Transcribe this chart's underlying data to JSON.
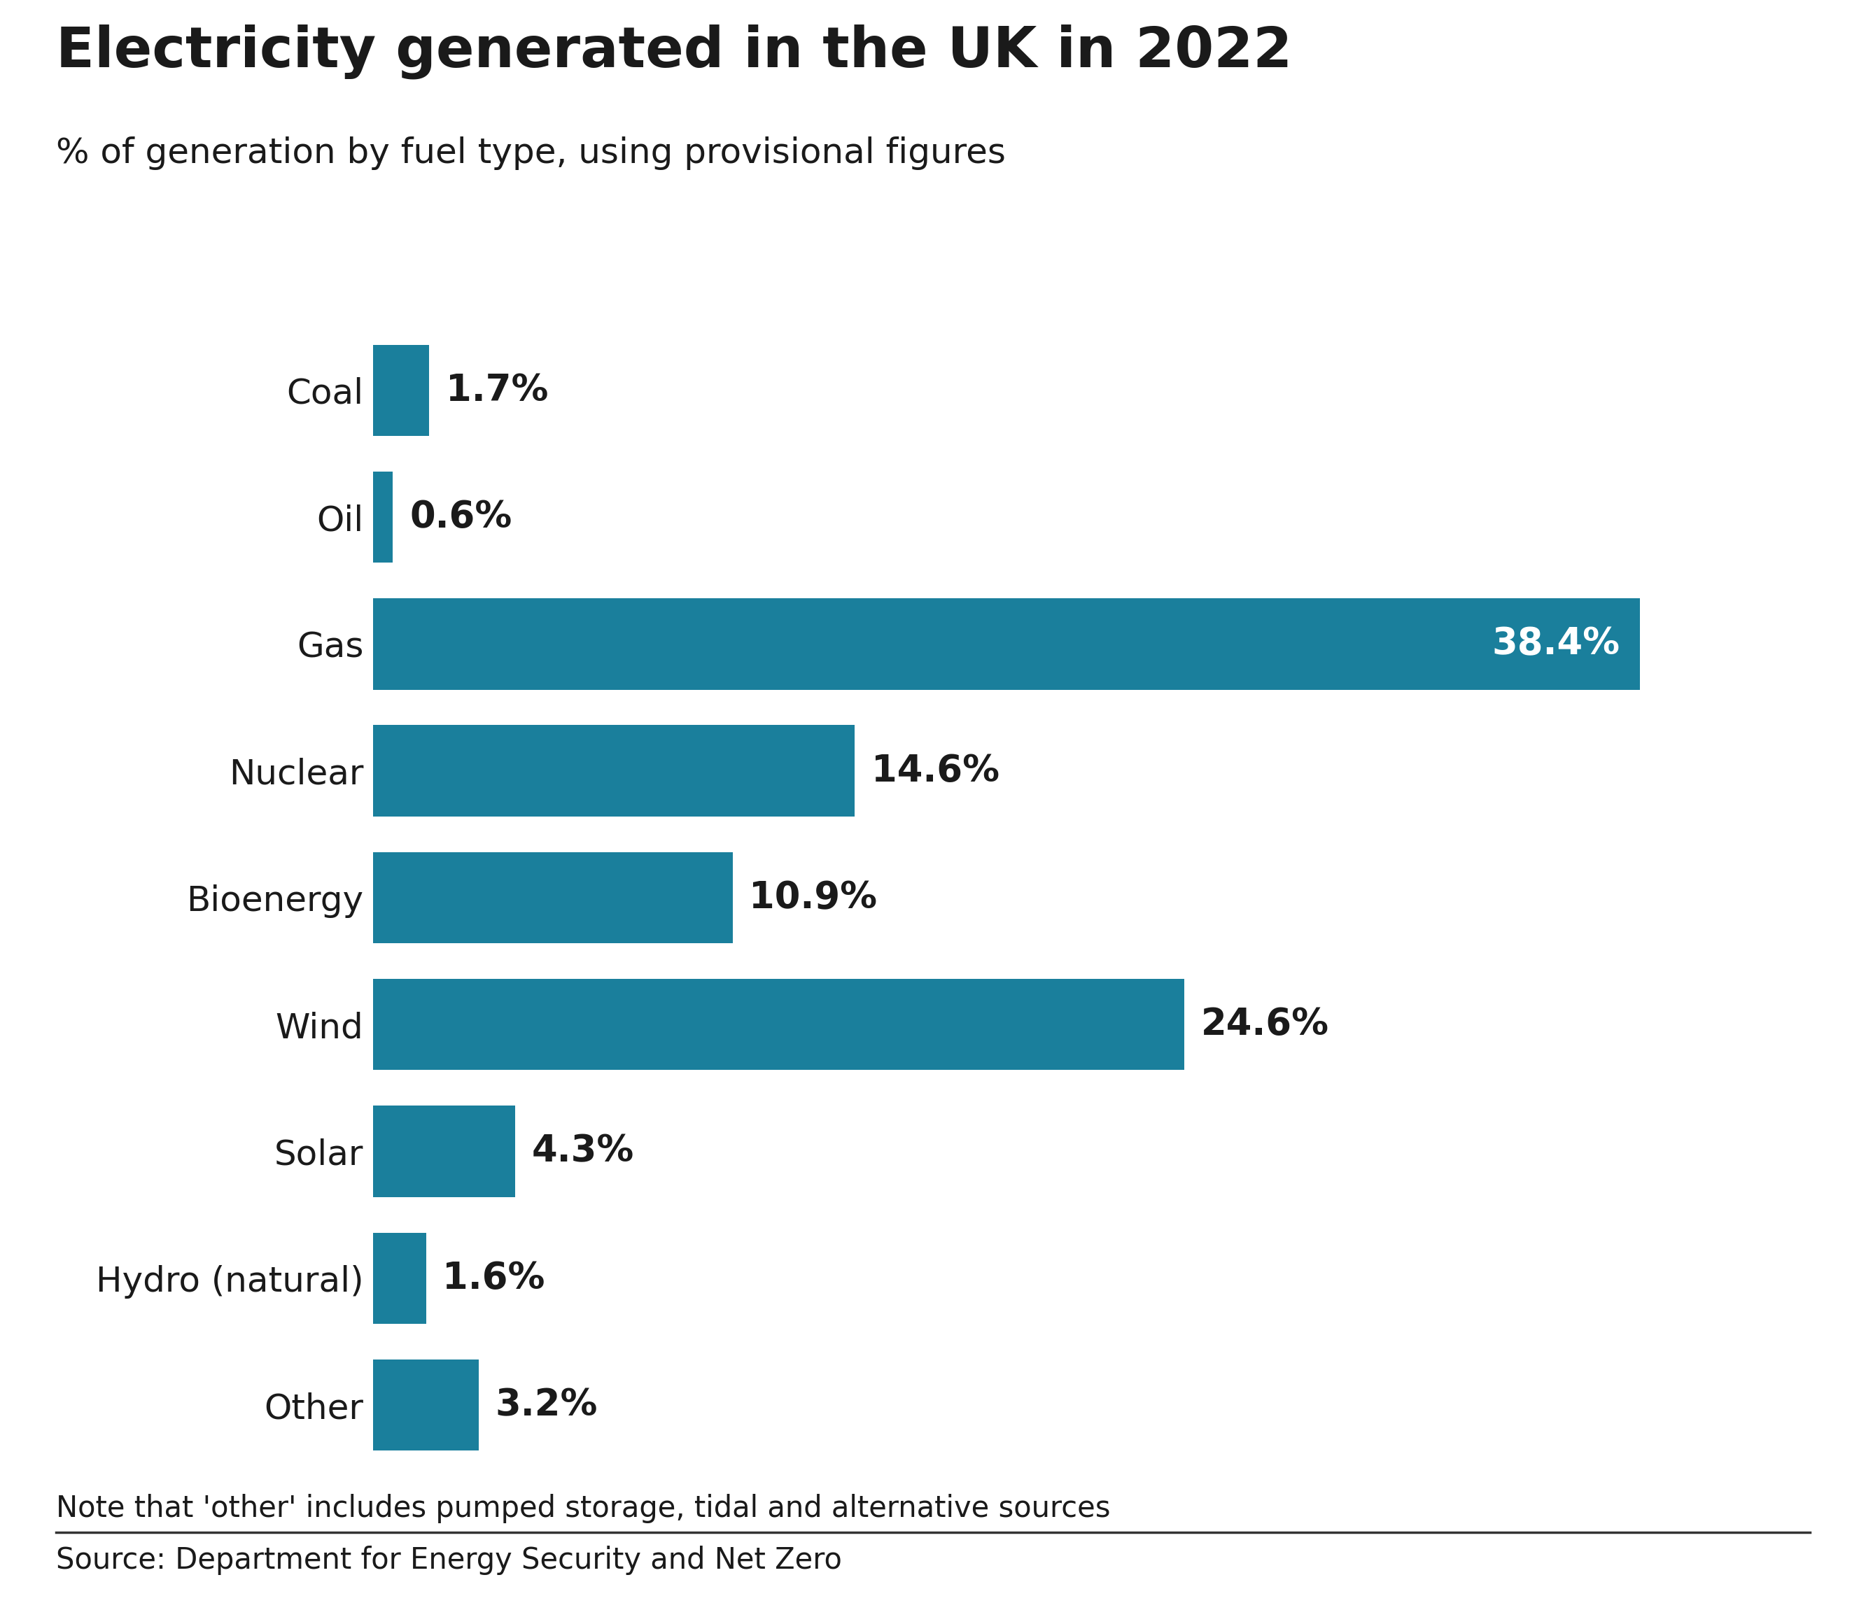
{
  "title": "Electricity generated in the UK in 2022",
  "subtitle": "% of generation by fuel type, using provisional figures",
  "categories": [
    "Coal",
    "Oil",
    "Gas",
    "Nuclear",
    "Bioenergy",
    "Wind",
    "Solar",
    "Hydro (natural)",
    "Other"
  ],
  "values": [
    1.7,
    0.6,
    38.4,
    14.6,
    10.9,
    24.6,
    4.3,
    1.6,
    3.2
  ],
  "labels": [
    "1.7%",
    "0.6%",
    "38.4%",
    "14.6%",
    "10.9%",
    "24.6%",
    "4.3%",
    "1.6%",
    "3.2%"
  ],
  "bar_color": "#1a7f9c",
  "label_color_inside": "#ffffff",
  "label_color_outside": "#1a1a1a",
  "title_fontsize": 58,
  "subtitle_fontsize": 36,
  "category_fontsize": 36,
  "label_fontsize": 38,
  "note_text": "Note that 'other' includes pumped storage, tidal and alternative sources",
  "source_text": "Source: Department for Energy Security and Net Zero",
  "note_fontsize": 30,
  "source_fontsize": 30,
  "background_color": "#ffffff",
  "bar_height": 0.72,
  "xlim": [
    0,
    43
  ],
  "inside_threshold": 38.0
}
